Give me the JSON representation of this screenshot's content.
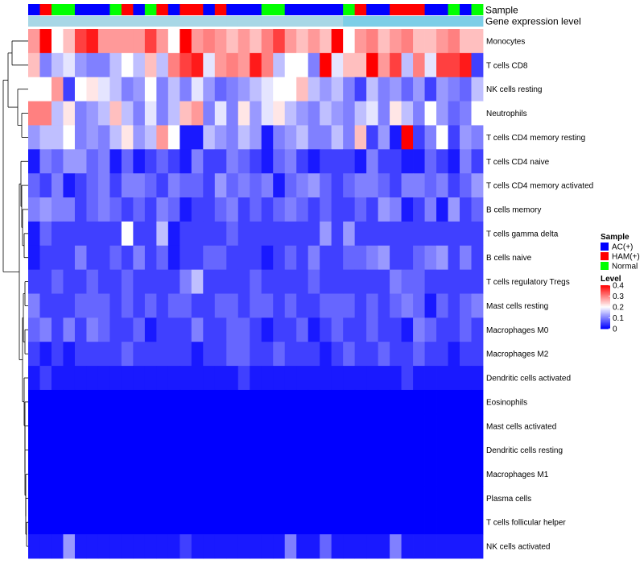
{
  "chart_data": {
    "type": "heatmap",
    "annotation_rows": {
      "sample_label": "Sample",
      "expression_label": "Gene expression level"
    },
    "rows": [
      "Monocytes",
      "T cells CD8",
      "NK cells resting",
      "Neutrophils",
      "T cells CD4 memory resting",
      "T cells CD4 naive",
      "T cells CD4 memory activated",
      "B cells memory",
      "T cells gamma delta",
      "B cells naive",
      "T cells regulatory  Tregs",
      "Mast cells resting",
      "Macrophages M0",
      "Macrophages M2",
      "Dendritic cells activated",
      "Eosinophils",
      "Mast cells activated",
      "Dendritic cells resting",
      "Macrophages M1",
      "Plasma cells",
      "T cells follicular helper",
      "NK cells activated"
    ],
    "sample_groups": [
      "A",
      "H",
      "N",
      "N",
      "A",
      "A",
      "A",
      "N",
      "H",
      "A",
      "N",
      "H",
      "A",
      "H",
      "H",
      "A",
      "H",
      "A",
      "A",
      "A",
      "N",
      "N",
      "A",
      "A",
      "A",
      "A",
      "A",
      "N",
      "H",
      "A",
      "A",
      "H",
      "H",
      "H",
      "A",
      "A",
      "N",
      "A",
      "N"
    ],
    "expression_level": [
      0.05,
      0.05,
      0.05,
      0.05,
      0.05,
      0.05,
      0.05,
      0.05,
      0.05,
      0.05,
      0.05,
      0.05,
      0.05,
      0.05,
      0.05,
      0.05,
      0.05,
      0.05,
      0.05,
      0.05,
      0.05,
      0.05,
      0.05,
      0.05,
      0.05,
      0.05,
      0.05,
      0.5,
      0.5,
      0.5,
      0.5,
      0.5,
      0.5,
      0.5,
      0.5,
      0.5,
      0.5,
      0.5,
      0.5
    ],
    "values": [
      [
        0.28,
        0.4,
        0.2,
        0.25,
        0.35,
        0.38,
        0.28,
        0.28,
        0.28,
        0.28,
        0.35,
        0.28,
        0.2,
        0.4,
        0.28,
        0.3,
        0.28,
        0.25,
        0.28,
        0.25,
        0.3,
        0.35,
        0.28,
        0.25,
        0.28,
        0.25,
        0.4,
        0.2,
        0.28,
        0.3,
        0.25,
        0.28,
        0.3,
        0.25,
        0.25,
        0.28,
        0.3,
        0.25,
        0.25
      ],
      [
        0.25,
        0.1,
        0.15,
        0.18,
        0.12,
        0.1,
        0.1,
        0.15,
        0.2,
        0.15,
        0.25,
        0.15,
        0.3,
        0.35,
        0.38,
        0.18,
        0.28,
        0.3,
        0.28,
        0.38,
        0.3,
        0.15,
        0.2,
        0.2,
        0.1,
        0.4,
        0.18,
        0.25,
        0.25,
        0.4,
        0.28,
        0.35,
        0.15,
        0.3,
        0.18,
        0.35,
        0.35,
        0.38,
        0.05
      ],
      [
        0.2,
        0.2,
        0.28,
        0.05,
        0.2,
        0.22,
        0.18,
        0.15,
        0.1,
        0.12,
        0.2,
        0.1,
        0.15,
        0.1,
        0.18,
        0.12,
        0.08,
        0.1,
        0.12,
        0.15,
        0.18,
        0.2,
        0.2,
        0.25,
        0.15,
        0.12,
        0.15,
        0.1,
        0.05,
        0.15,
        0.1,
        0.12,
        0.08,
        0.12,
        0.05,
        0.12,
        0.1,
        0.08,
        0.15
      ],
      [
        0.3,
        0.3,
        0.15,
        0.22,
        0.1,
        0.12,
        0.15,
        0.25,
        0.15,
        0.1,
        0.18,
        0.1,
        0.15,
        0.25,
        0.28,
        0.1,
        0.18,
        0.1,
        0.22,
        0.12,
        0.18,
        0.22,
        0.15,
        0.12,
        0.1,
        0.15,
        0.12,
        0.1,
        0.15,
        0.18,
        0.1,
        0.22,
        0.15,
        0.1,
        0.2,
        0.12,
        0.08,
        0.1,
        0.2
      ],
      [
        0.12,
        0.15,
        0.15,
        0.2,
        0.1,
        0.12,
        0.1,
        0.15,
        0.22,
        0.12,
        0.15,
        0.28,
        0.2,
        0.02,
        0.02,
        0.15,
        0.12,
        0.1,
        0.15,
        0.12,
        0.02,
        0.1,
        0.12,
        0.15,
        0.1,
        0.1,
        0.15,
        0.1,
        0.25,
        0.05,
        0.12,
        0.02,
        0.42,
        0.05,
        0.1,
        0.2,
        0.05,
        0.12,
        0.1
      ],
      [
        0.02,
        0.1,
        0.08,
        0.12,
        0.12,
        0.08,
        0.1,
        0.02,
        0.08,
        0.02,
        0.05,
        0.08,
        0.05,
        0.02,
        0.1,
        0.05,
        0.05,
        0.1,
        0.08,
        0.05,
        0.02,
        0.08,
        0.1,
        0.05,
        0.02,
        0.05,
        0.05,
        0.05,
        0.02,
        0.1,
        0.05,
        0.05,
        0.02,
        0.02,
        0.08,
        0.05,
        0.02,
        0.1,
        0.05
      ],
      [
        0.08,
        0.05,
        0.1,
        0.02,
        0.05,
        0.08,
        0.1,
        0.05,
        0.1,
        0.1,
        0.08,
        0.05,
        0.1,
        0.08,
        0.08,
        0.05,
        0.12,
        0.08,
        0.1,
        0.08,
        0.1,
        0.02,
        0.08,
        0.1,
        0.12,
        0.08,
        0.05,
        0.08,
        0.1,
        0.1,
        0.08,
        0.05,
        0.1,
        0.1,
        0.08,
        0.1,
        0.05,
        0.08,
        0.12
      ],
      [
        0.1,
        0.12,
        0.1,
        0.1,
        0.05,
        0.08,
        0.1,
        0.08,
        0.05,
        0.08,
        0.05,
        0.1,
        0.08,
        0.02,
        0.05,
        0.05,
        0.08,
        0.1,
        0.05,
        0.08,
        0.05,
        0.08,
        0.1,
        0.08,
        0.05,
        0.08,
        0.05,
        0.05,
        0.08,
        0.05,
        0.12,
        0.1,
        0.02,
        0.05,
        0.1,
        0.02,
        0.12,
        0.05,
        0.08
      ],
      [
        0.02,
        0.08,
        0.05,
        0.05,
        0.05,
        0.05,
        0.05,
        0.05,
        0.2,
        0.05,
        0.05,
        0.15,
        0.02,
        0.05,
        0.05,
        0.05,
        0.05,
        0.08,
        0.05,
        0.05,
        0.05,
        0.05,
        0.05,
        0.05,
        0.05,
        0.12,
        0.05,
        0.12,
        0.05,
        0.05,
        0.05,
        0.05,
        0.05,
        0.05,
        0.05,
        0.05,
        0.05,
        0.05,
        0.05
      ],
      [
        0.02,
        0.05,
        0.05,
        0.05,
        0.1,
        0.05,
        0.05,
        0.08,
        0.05,
        0.1,
        0.05,
        0.08,
        0.02,
        0.05,
        0.05,
        0.08,
        0.08,
        0.05,
        0.05,
        0.05,
        0.02,
        0.05,
        0.08,
        0.05,
        0.1,
        0.05,
        0.05,
        0.08,
        0.08,
        0.1,
        0.12,
        0.05,
        0.05,
        0.08,
        0.1,
        0.12,
        0.05,
        0.1,
        0.05
      ],
      [
        0.05,
        0.05,
        0.08,
        0.05,
        0.05,
        0.08,
        0.05,
        0.05,
        0.08,
        0.05,
        0.05,
        0.05,
        0.05,
        0.1,
        0.15,
        0.05,
        0.05,
        0.05,
        0.05,
        0.08,
        0.05,
        0.05,
        0.05,
        0.05,
        0.08,
        0.05,
        0.05,
        0.05,
        0.05,
        0.05,
        0.05,
        0.1,
        0.08,
        0.08,
        0.05,
        0.05,
        0.05,
        0.05,
        0.05
      ],
      [
        0.1,
        0.05,
        0.05,
        0.05,
        0.08,
        0.08,
        0.08,
        0.05,
        0.08,
        0.05,
        0.08,
        0.05,
        0.08,
        0.08,
        0.05,
        0.05,
        0.08,
        0.08,
        0.05,
        0.08,
        0.08,
        0.05,
        0.08,
        0.05,
        0.05,
        0.08,
        0.08,
        0.08,
        0.05,
        0.08,
        0.05,
        0.08,
        0.1,
        0.08,
        0.02,
        0.08,
        0.05,
        0.08,
        0.1
      ],
      [
        0.08,
        0.1,
        0.05,
        0.1,
        0.05,
        0.1,
        0.08,
        0.05,
        0.05,
        0.08,
        0.02,
        0.05,
        0.05,
        0.05,
        0.1,
        0.05,
        0.05,
        0.08,
        0.08,
        0.05,
        0.02,
        0.05,
        0.05,
        0.08,
        0.02,
        0.05,
        0.08,
        0.05,
        0.05,
        0.08,
        0.05,
        0.05,
        0.02,
        0.1,
        0.08,
        0.05,
        0.05,
        0.08,
        0.05
      ],
      [
        0.05,
        0.02,
        0.05,
        0.02,
        0.05,
        0.05,
        0.05,
        0.05,
        0.08,
        0.05,
        0.05,
        0.05,
        0.05,
        0.05,
        0.02,
        0.05,
        0.05,
        0.08,
        0.08,
        0.05,
        0.05,
        0.08,
        0.05,
        0.05,
        0.05,
        0.02,
        0.05,
        0.08,
        0.05,
        0.05,
        0.08,
        0.05,
        0.05,
        0.08,
        0.05,
        0.05,
        0.02,
        0.05,
        0.05
      ],
      [
        0.02,
        0.05,
        0.02,
        0.02,
        0.02,
        0.02,
        0.02,
        0.02,
        0.02,
        0.02,
        0.02,
        0.02,
        0.02,
        0.02,
        0.02,
        0.02,
        0.02,
        0.02,
        0.05,
        0.02,
        0.02,
        0.02,
        0.02,
        0.02,
        0.02,
        0.02,
        0.02,
        0.02,
        0.02,
        0.02,
        0.02,
        0.02,
        0.05,
        0.02,
        0.02,
        0.02,
        0.02,
        0.02,
        0.02
      ],
      [
        0,
        0,
        0,
        0,
        0,
        0,
        0,
        0,
        0,
        0,
        0,
        0,
        0,
        0,
        0,
        0,
        0,
        0,
        0,
        0,
        0,
        0,
        0,
        0,
        0,
        0,
        0,
        0,
        0,
        0,
        0,
        0,
        0,
        0,
        0,
        0,
        0,
        0,
        0
      ],
      [
        0,
        0,
        0,
        0,
        0,
        0,
        0,
        0,
        0,
        0,
        0,
        0,
        0,
        0,
        0,
        0,
        0,
        0,
        0,
        0,
        0,
        0,
        0,
        0,
        0,
        0,
        0,
        0,
        0,
        0,
        0,
        0,
        0,
        0,
        0,
        0,
        0,
        0,
        0
      ],
      [
        0,
        0,
        0,
        0,
        0,
        0,
        0,
        0,
        0,
        0,
        0,
        0,
        0,
        0,
        0,
        0,
        0,
        0,
        0,
        0,
        0,
        0,
        0,
        0,
        0,
        0,
        0,
        0,
        0,
        0,
        0,
        0,
        0,
        0,
        0,
        0,
        0,
        0,
        0
      ],
      [
        0,
        0,
        0,
        0,
        0,
        0,
        0,
        0,
        0,
        0,
        0,
        0,
        0,
        0,
        0,
        0,
        0,
        0,
        0,
        0,
        0,
        0,
        0,
        0,
        0,
        0,
        0,
        0,
        0,
        0,
        0,
        0,
        0,
        0,
        0,
        0,
        0,
        0,
        0
      ],
      [
        0,
        0,
        0,
        0,
        0,
        0,
        0,
        0,
        0,
        0,
        0,
        0,
        0,
        0,
        0,
        0,
        0,
        0,
        0,
        0,
        0,
        0,
        0,
        0,
        0,
        0,
        0,
        0,
        0,
        0,
        0,
        0,
        0,
        0,
        0,
        0,
        0,
        0,
        0
      ],
      [
        0,
        0,
        0,
        0,
        0,
        0,
        0,
        0,
        0,
        0,
        0,
        0,
        0,
        0,
        0,
        0,
        0,
        0,
        0,
        0,
        0,
        0,
        0,
        0,
        0,
        0,
        0,
        0,
        0,
        0,
        0,
        0,
        0,
        0,
        0,
        0,
        0,
        0,
        0
      ],
      [
        0.02,
        0.02,
        0.02,
        0.12,
        0.02,
        0.02,
        0.02,
        0.02,
        0.02,
        0.02,
        0.02,
        0.02,
        0.02,
        0.05,
        0.02,
        0.02,
        0.02,
        0.02,
        0.02,
        0.02,
        0.02,
        0.02,
        0.1,
        0.02,
        0.02,
        0.08,
        0.02,
        0.02,
        0.02,
        0.02,
        0.02,
        0.1,
        0.02,
        0.02,
        0.02,
        0.02,
        0.02,
        0.02,
        0.02
      ]
    ],
    "color_scale": {
      "min": 0,
      "mid": 0.2,
      "max": 0.4,
      "low": "#0000ff",
      "mid_color": "#ffffff",
      "high": "#ff0000"
    },
    "legend": {
      "sample_title": "Sample",
      "sample_items": [
        {
          "key": "A",
          "label": "AC(+)",
          "color": "#0000ff"
        },
        {
          "key": "H",
          "label": "HAM(+)",
          "color": "#ff0000"
        },
        {
          "key": "N",
          "label": "Normal",
          "color": "#00ff00"
        }
      ],
      "level_title": "Level",
      "level_ticks": [
        {
          "value": 0.4,
          "label": "0.4"
        },
        {
          "value": 0.3,
          "label": "0.3"
        },
        {
          "value": 0.2,
          "label": "0.2"
        },
        {
          "value": 0.1,
          "label": "0.1"
        },
        {
          "value": 0,
          "label": "0"
        }
      ],
      "expression_colors": {
        "low": "#add8e6",
        "high": "#4dc3e8"
      }
    },
    "dendrogram": "row"
  }
}
